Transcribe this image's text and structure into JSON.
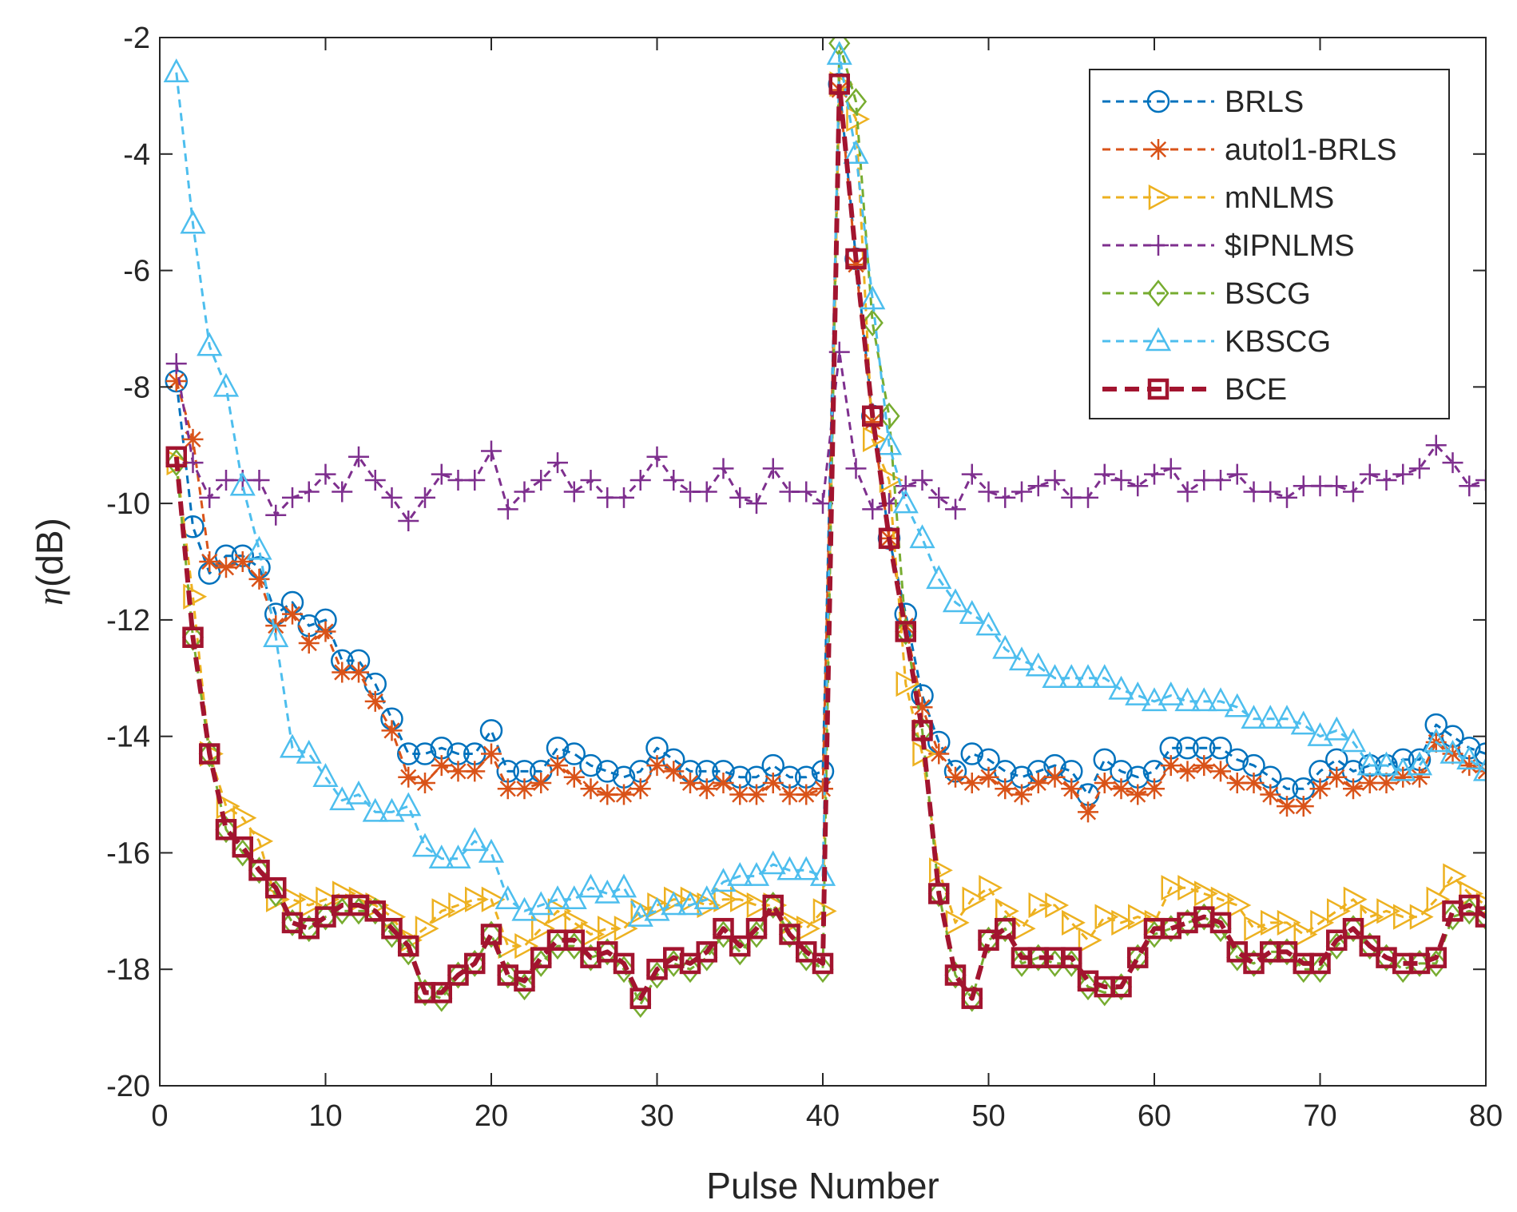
{
  "chart_data": {
    "type": "line",
    "title": "",
    "xlabel": "Pulse Number",
    "ylabel_symbol": "η",
    "ylabel_unit": "(dB)",
    "xlim": [
      0,
      80
    ],
    "ylim": [
      -20,
      -2
    ],
    "xticks": [
      0,
      10,
      20,
      30,
      40,
      50,
      60,
      70,
      80
    ],
    "yticks": [
      -20,
      -18,
      -16,
      -14,
      -12,
      -10,
      -8,
      -6,
      -4,
      -2
    ],
    "grid": false,
    "legend_position": "top-right",
    "x": [
      1,
      2,
      3,
      4,
      5,
      6,
      7,
      8,
      9,
      10,
      11,
      12,
      13,
      14,
      15,
      16,
      17,
      18,
      19,
      20,
      21,
      22,
      23,
      24,
      25,
      26,
      27,
      28,
      29,
      30,
      31,
      32,
      33,
      34,
      35,
      36,
      37,
      38,
      39,
      40,
      41,
      42,
      43,
      44,
      45,
      46,
      47,
      48,
      49,
      50,
      51,
      52,
      53,
      54,
      55,
      56,
      57,
      58,
      59,
      60,
      61,
      62,
      63,
      64,
      65,
      66,
      67,
      68,
      69,
      70,
      71,
      72,
      73,
      74,
      75,
      76,
      77,
      78,
      79,
      80
    ],
    "series": [
      {
        "name": "BRLS",
        "color": "#0072BD",
        "marker": "circle",
        "line_style": "dashed",
        "line_width": 3,
        "values": [
          -7.9,
          -10.4,
          -11.2,
          -10.9,
          -10.9,
          -11.1,
          -11.9,
          -11.7,
          -12.1,
          -12.0,
          -12.7,
          -12.7,
          -13.1,
          -13.7,
          -14.3,
          -14.3,
          -14.2,
          -14.3,
          -14.3,
          -13.9,
          -14.6,
          -14.6,
          -14.6,
          -14.2,
          -14.3,
          -14.5,
          -14.6,
          -14.7,
          -14.6,
          -14.2,
          -14.4,
          -14.6,
          -14.6,
          -14.6,
          -14.7,
          -14.7,
          -14.5,
          -14.7,
          -14.7,
          -14.6,
          -2.8,
          -5.8,
          -8.5,
          -10.6,
          -11.9,
          -13.3,
          -14.1,
          -14.6,
          -14.3,
          -14.4,
          -14.6,
          -14.7,
          -14.6,
          -14.5,
          -14.6,
          -15.0,
          -14.4,
          -14.6,
          -14.7,
          -14.6,
          -14.2,
          -14.2,
          -14.2,
          -14.2,
          -14.4,
          -14.5,
          -14.7,
          -14.9,
          -14.9,
          -14.6,
          -14.4,
          -14.6,
          -14.5,
          -14.5,
          -14.4,
          -14.4,
          -13.8,
          -14.0,
          -14.2,
          -14.3
        ]
      },
      {
        "name": "autol1-BRLS",
        "color": "#D95319",
        "marker": "asterisk",
        "line_style": "dashed",
        "line_width": 3,
        "values": [
          -7.9,
          -8.9,
          -11.0,
          -11.1,
          -11.0,
          -11.3,
          -12.1,
          -11.9,
          -12.4,
          -12.2,
          -12.9,
          -12.9,
          -13.4,
          -13.9,
          -14.7,
          -14.8,
          -14.5,
          -14.6,
          -14.6,
          -14.3,
          -14.9,
          -14.9,
          -14.8,
          -14.5,
          -14.7,
          -14.9,
          -15.0,
          -15.0,
          -14.9,
          -14.5,
          -14.6,
          -14.8,
          -14.9,
          -14.8,
          -15.0,
          -15.0,
          -14.8,
          -15.0,
          -15.0,
          -14.9,
          -2.9,
          -5.9,
          -8.6,
          -10.6,
          -12.1,
          -13.5,
          -14.3,
          -14.7,
          -14.8,
          -14.7,
          -14.9,
          -15.0,
          -14.8,
          -14.7,
          -14.9,
          -15.3,
          -14.8,
          -14.9,
          -15.0,
          -14.9,
          -14.5,
          -14.6,
          -14.5,
          -14.6,
          -14.8,
          -14.8,
          -15.0,
          -15.2,
          -15.2,
          -14.9,
          -14.7,
          -14.9,
          -14.8,
          -14.8,
          -14.7,
          -14.7,
          -14.1,
          -14.3,
          -14.5,
          -14.6
        ]
      },
      {
        "name": "mNLMS",
        "color": "#EDB120",
        "marker": "triangle-right",
        "line_style": "dashed",
        "line_width": 3,
        "values": [
          -9.3,
          -11.6,
          -14.3,
          -15.2,
          -15.4,
          -15.8,
          -16.8,
          -16.8,
          -16.9,
          -16.8,
          -16.7,
          -16.8,
          -16.9,
          -17.1,
          -17.5,
          -17.3,
          -17.0,
          -16.9,
          -16.8,
          -16.8,
          -17.6,
          -17.6,
          -17.3,
          -17.0,
          -17.2,
          -17.4,
          -17.3,
          -17.3,
          -17.0,
          -16.9,
          -16.8,
          -16.8,
          -16.9,
          -16.8,
          -16.8,
          -16.9,
          -16.9,
          -17.2,
          -17.3,
          -17.0,
          -2.8,
          -3.4,
          -8.9,
          -9.6,
          -13.1,
          -14.3,
          -16.3,
          -17.2,
          -16.8,
          -16.6,
          -17.0,
          -17.3,
          -16.9,
          -16.9,
          -17.2,
          -17.5,
          -17.1,
          -17.2,
          -17.1,
          -17.2,
          -16.6,
          -16.6,
          -16.7,
          -16.8,
          -16.9,
          -17.3,
          -17.2,
          -17.2,
          -17.4,
          -17.2,
          -17.0,
          -16.8,
          -17.1,
          -17.0,
          -17.1,
          -17.1,
          -16.8,
          -16.4,
          -16.7,
          -16.9
        ]
      },
      {
        "name": "$IPNLMS",
        "color": "#7E2F8E",
        "marker": "plus",
        "line_style": "dashed",
        "line_width": 3,
        "values": [
          -7.6,
          -9.3,
          -9.9,
          -9.6,
          -9.6,
          -9.6,
          -10.2,
          -9.9,
          -9.8,
          -9.5,
          -9.8,
          -9.2,
          -9.6,
          -9.9,
          -10.3,
          -9.9,
          -9.5,
          -9.6,
          -9.6,
          -9.1,
          -10.1,
          -9.8,
          -9.6,
          -9.3,
          -9.8,
          -9.6,
          -9.9,
          -9.9,
          -9.6,
          -9.2,
          -9.6,
          -9.8,
          -9.8,
          -9.4,
          -9.9,
          -10.0,
          -9.4,
          -9.8,
          -9.8,
          -10.0,
          -7.4,
          -9.4,
          -10.1,
          -10.0,
          -9.7,
          -9.6,
          -9.9,
          -10.1,
          -9.5,
          -9.8,
          -9.9,
          -9.8,
          -9.7,
          -9.6,
          -9.9,
          -9.9,
          -9.5,
          -9.6,
          -9.7,
          -9.5,
          -9.4,
          -9.8,
          -9.6,
          -9.6,
          -9.5,
          -9.8,
          -9.8,
          -9.9,
          -9.7,
          -9.7,
          -9.7,
          -9.8,
          -9.5,
          -9.6,
          -9.5,
          -9.4,
          -9.0,
          -9.3,
          -9.7,
          -9.6
        ]
      },
      {
        "name": "BSCG",
        "color": "#77AC30",
        "marker": "diamond",
        "line_style": "dashed",
        "line_width": 3,
        "values": [
          -9.3,
          -12.3,
          -14.3,
          -15.6,
          -16.0,
          -16.3,
          -16.7,
          -17.2,
          -17.3,
          -17.1,
          -17.0,
          -17.0,
          -17.0,
          -17.4,
          -17.7,
          -18.4,
          -18.5,
          -18.1,
          -17.9,
          -17.4,
          -18.1,
          -18.3,
          -17.9,
          -17.6,
          -17.6,
          -17.8,
          -17.7,
          -18.0,
          -18.6,
          -18.1,
          -17.9,
          -18.0,
          -17.8,
          -17.4,
          -17.7,
          -17.4,
          -16.9,
          -17.4,
          -17.8,
          -18.0,
          -2.1,
          -3.1,
          -6.9,
          -8.5,
          -12.2,
          -13.9,
          -16.7,
          -18.1,
          -18.5,
          -17.5,
          -17.3,
          -17.9,
          -17.8,
          -17.9,
          -17.9,
          -18.3,
          -18.4,
          -18.3,
          -17.8,
          -17.4,
          -17.3,
          -17.2,
          -17.1,
          -17.3,
          -17.8,
          -17.9,
          -17.7,
          -17.7,
          -18.0,
          -18.0,
          -17.6,
          -17.3,
          -17.6,
          -17.8,
          -18.0,
          -17.9,
          -17.9,
          -17.1,
          -17.0,
          -17.1
        ]
      },
      {
        "name": "KBSCG",
        "color": "#4DBEEE",
        "marker": "triangle-up",
        "line_style": "dashed",
        "line_width": 3,
        "values": [
          -2.6,
          -5.2,
          -7.3,
          -8.0,
          -9.7,
          -10.8,
          -12.3,
          -14.2,
          -14.3,
          -14.7,
          -15.1,
          -15.0,
          -15.3,
          -15.3,
          -15.2,
          -15.9,
          -16.1,
          -16.1,
          -15.8,
          -16.0,
          -16.8,
          -17.0,
          -16.9,
          -16.8,
          -16.8,
          -16.6,
          -16.7,
          -16.6,
          -17.1,
          -17.0,
          -16.9,
          -16.9,
          -16.8,
          -16.5,
          -16.4,
          -16.4,
          -16.2,
          -16.3,
          -16.3,
          -16.4,
          -2.3,
          -4.0,
          -6.5,
          -9.0,
          -10.0,
          -10.6,
          -11.3,
          -11.7,
          -11.9,
          -12.1,
          -12.5,
          -12.7,
          -12.8,
          -13.0,
          -13.0,
          -13.0,
          -13.0,
          -13.2,
          -13.3,
          -13.4,
          -13.3,
          -13.4,
          -13.4,
          -13.4,
          -13.5,
          -13.7,
          -13.7,
          -13.7,
          -13.8,
          -14.0,
          -13.9,
          -14.1,
          -14.5,
          -14.5,
          -14.6,
          -14.5,
          -14.1,
          -14.3,
          -14.4,
          -14.6
        ]
      },
      {
        "name": "BCE",
        "color": "#A2142F",
        "marker": "square",
        "line_style": "dashed",
        "line_width": 6,
        "values": [
          -9.2,
          -12.3,
          -14.3,
          -15.6,
          -15.9,
          -16.3,
          -16.6,
          -17.2,
          -17.3,
          -17.1,
          -16.9,
          -16.9,
          -17.0,
          -17.3,
          -17.6,
          -18.4,
          -18.4,
          -18.1,
          -17.9,
          -17.4,
          -18.1,
          -18.2,
          -17.8,
          -17.5,
          -17.5,
          -17.8,
          -17.7,
          -17.9,
          -18.5,
          -18.0,
          -17.8,
          -17.9,
          -17.7,
          -17.3,
          -17.6,
          -17.3,
          -16.9,
          -17.4,
          -17.7,
          -17.9,
          -2.8,
          -5.8,
          -8.5,
          -10.6,
          -12.2,
          -13.9,
          -16.7,
          -18.1,
          -18.5,
          -17.5,
          -17.3,
          -17.8,
          -17.8,
          -17.8,
          -17.8,
          -18.2,
          -18.3,
          -18.3,
          -17.8,
          -17.3,
          -17.3,
          -17.2,
          -17.1,
          -17.2,
          -17.7,
          -17.9,
          -17.7,
          -17.7,
          -17.9,
          -17.9,
          -17.5,
          -17.3,
          -17.6,
          -17.8,
          -17.9,
          -17.9,
          -17.8,
          -17.0,
          -16.9,
          -17.1
        ]
      }
    ]
  }
}
